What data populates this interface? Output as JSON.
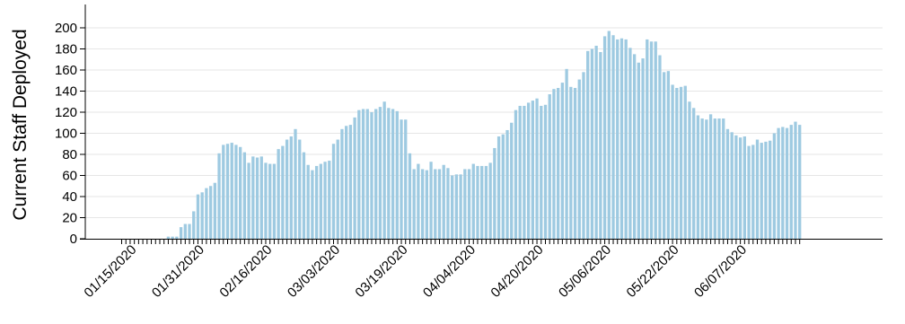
{
  "chart_data": {
    "type": "bar",
    "ylabel": "Current Staff Deployed",
    "xlabel": "",
    "ylim": [
      0,
      210
    ],
    "yticks": [
      0,
      20,
      40,
      60,
      80,
      100,
      120,
      140,
      160,
      180,
      200
    ],
    "grid": "horizontal",
    "bar_color": "#9ecae1",
    "start_date": "01/12/2020",
    "x_tick_labels": [
      "01/15/2020",
      "01/31/2020",
      "02/16/2020",
      "03/03/2020",
      "03/19/2020",
      "04/04/2020",
      "04/20/2020",
      "05/06/2020",
      "05/22/2020",
      "06/07/2020"
    ],
    "values": [
      0,
      0,
      0,
      0,
      0,
      0,
      0,
      0,
      0,
      0,
      0,
      2,
      2,
      2,
      11,
      14,
      14,
      26,
      42,
      44,
      48,
      50,
      53,
      81,
      89,
      90,
      91,
      89,
      87,
      82,
      72,
      78,
      77,
      78,
      72,
      71,
      71,
      85,
      88,
      94,
      97,
      104,
      94,
      82,
      70,
      65,
      69,
      71,
      73,
      74,
      90,
      94,
      104,
      107,
      108,
      115,
      122,
      123,
      123,
      120,
      123,
      125,
      130,
      124,
      123,
      121,
      113,
      113,
      81,
      66,
      71,
      66,
      65,
      73,
      66,
      66,
      70,
      67,
      60,
      61,
      61,
      66,
      66,
      71,
      69,
      69,
      69,
      72,
      86,
      97,
      99,
      103,
      110,
      122,
      126,
      126,
      129,
      131,
      133,
      126,
      127,
      137,
      142,
      143,
      148,
      161,
      144,
      143,
      151,
      158,
      178,
      180,
      183,
      177,
      192,
      197,
      193,
      189,
      190,
      189,
      181,
      175,
      167,
      171,
      189,
      187,
      187,
      174,
      158,
      159,
      146,
      143,
      144,
      145,
      130,
      124,
      117,
      114,
      113,
      118,
      114,
      114,
      114,
      104,
      101,
      98,
      96,
      97,
      88,
      89,
      94,
      91,
      92,
      93,
      100,
      105,
      106,
      105,
      108,
      111,
      108
    ]
  }
}
